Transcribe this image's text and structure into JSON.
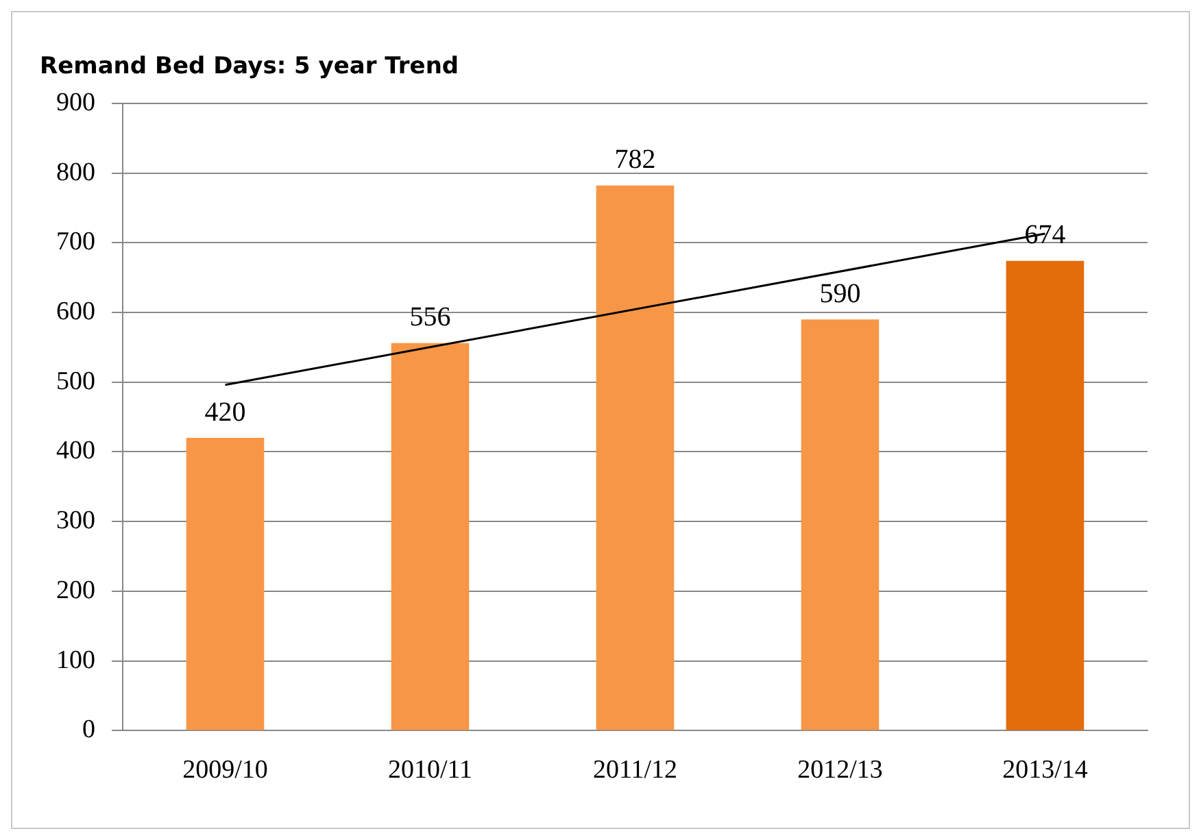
{
  "chart_data": {
    "type": "bar",
    "title": "Remand Bed Days: 5 year Trend",
    "categories": [
      "2009/10",
      "2010/11",
      "2011/12",
      "2012/13",
      "2013/14"
    ],
    "series": [
      {
        "values": [
          420,
          556,
          782,
          590,
          674
        ],
        "value_labels": [
          "420",
          "556",
          "782",
          "590",
          "674"
        ],
        "colors": [
          "#f79646",
          "#f79646",
          "#f79646",
          "#f79646",
          "#e46c0a"
        ]
      },
      {
        "type": "line",
        "x": [
          "2009/10",
          "2013/14"
        ],
        "values": [
          496,
          713
        ],
        "color": "#000000"
      }
    ],
    "ylim": [
      0,
      900
    ],
    "yticks": [
      0,
      100,
      200,
      300,
      400,
      500,
      600,
      700,
      800,
      900
    ],
    "grid": "y",
    "legend": false,
    "marker": "none"
  }
}
